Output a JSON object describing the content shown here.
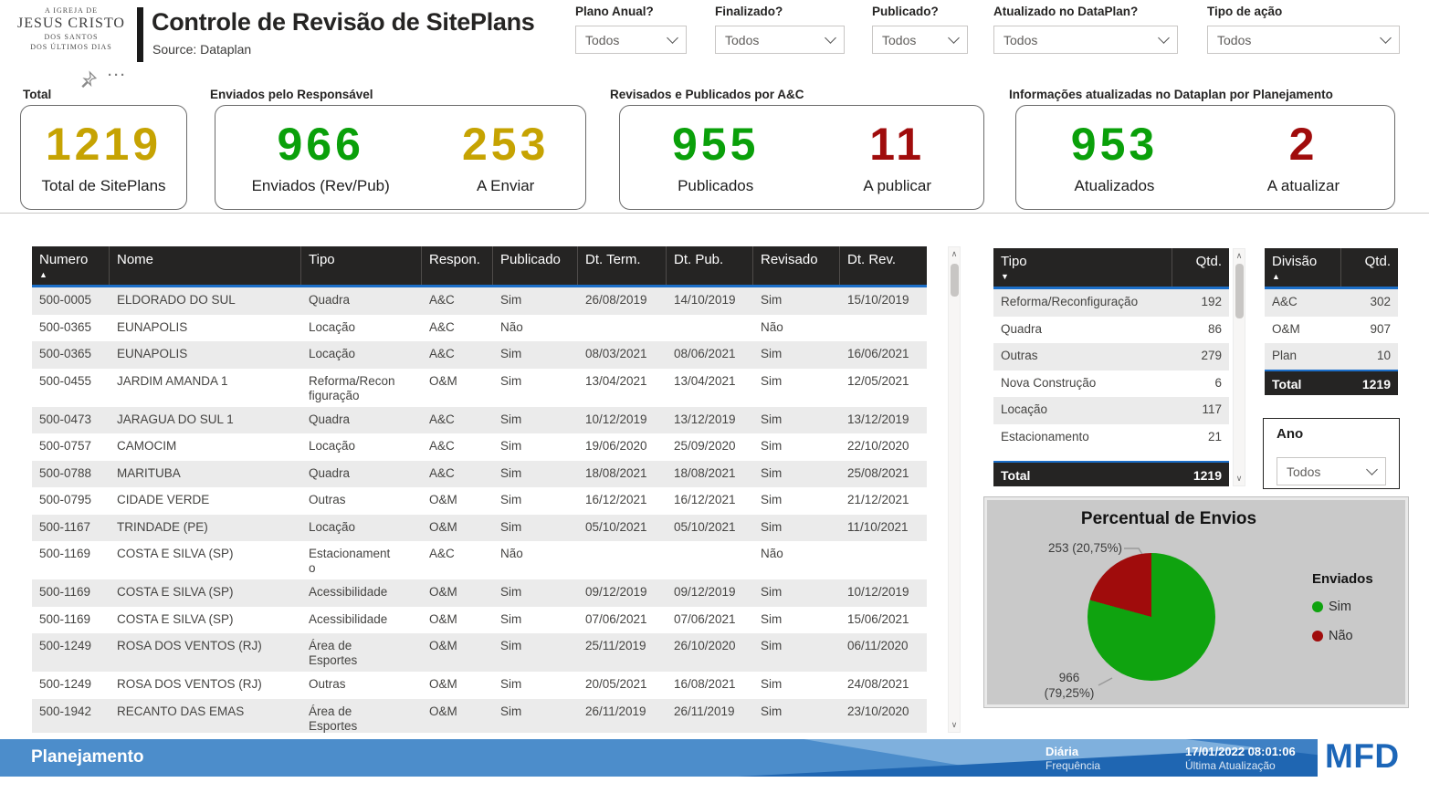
{
  "header": {
    "logo_lines": [
      "A IGREJA DE",
      "JESUS CRISTO",
      "DOS SANTOS",
      "DOS ÚLTIMOS DIAS"
    ],
    "title": "Controle de Revisão de SitePlans",
    "subtitle": "Source: Dataplan"
  },
  "filters": [
    {
      "label": "Plano Anual?",
      "value": "Todos"
    },
    {
      "label": "Finalizado?",
      "value": "Todos"
    },
    {
      "label": "Publicado?",
      "value": "Todos"
    },
    {
      "label": "Atualizado no DataPlan?",
      "value": "Todos"
    },
    {
      "label": "Tipo de ação",
      "value": "Todos"
    }
  ],
  "kpi_cards": [
    {
      "title": "Total",
      "values": [
        {
          "value": "1219",
          "label": "Total de SitePlans",
          "color": "#c6a302"
        }
      ]
    },
    {
      "title": "Enviados pelo Responsável",
      "values": [
        {
          "value": "966",
          "label": "Enviados (Rev/Pub)",
          "color": "#0aa00a"
        },
        {
          "value": "253",
          "label": "A Enviar",
          "color": "#c6a302"
        }
      ]
    },
    {
      "title": "Revisados e Publicados por A&C",
      "values": [
        {
          "value": "955",
          "label": "Publicados",
          "color": "#0aa00a"
        },
        {
          "value": "11",
          "label": "A publicar",
          "color": "#a00c0c"
        }
      ]
    },
    {
      "title": "Informações atualizadas no Dataplan por Planejamento",
      "values": [
        {
          "value": "953",
          "label": "Atualizados",
          "color": "#0aa00a"
        },
        {
          "value": "2",
          "label": "A atualizar",
          "color": "#a00c0c"
        }
      ]
    }
  ],
  "main_table": {
    "columns": [
      {
        "label": "Numero",
        "sort": "asc"
      },
      {
        "label": "Nome"
      },
      {
        "label": "Tipo"
      },
      {
        "label": "Respon."
      },
      {
        "label": "Publicado"
      },
      {
        "label": "Dt. Term."
      },
      {
        "label": "Dt. Pub."
      },
      {
        "label": "Revisado"
      },
      {
        "label": "Dt. Rev."
      }
    ],
    "rows": [
      [
        "500-0005",
        "ELDORADO DO SUL",
        "Quadra",
        "A&C",
        "Sim",
        "26/08/2019",
        "14/10/2019",
        "Sim",
        "15/10/2019"
      ],
      [
        "500-0365",
        "EUNAPOLIS",
        "Locação",
        "A&C",
        "Não",
        "",
        "",
        "Não",
        ""
      ],
      [
        "500-0365",
        "EUNAPOLIS",
        "Locação",
        "A&C",
        "Sim",
        "08/03/2021",
        "08/06/2021",
        "Sim",
        "16/06/2021"
      ],
      [
        "500-0455",
        "JARDIM AMANDA 1",
        "Reforma/Reconfiguração",
        "O&M",
        "Sim",
        "13/04/2021",
        "13/04/2021",
        "Sim",
        "12/05/2021"
      ],
      [
        "500-0473",
        "JARAGUA DO SUL 1",
        "Quadra",
        "A&C",
        "Sim",
        "10/12/2019",
        "13/12/2019",
        "Sim",
        "13/12/2019"
      ],
      [
        "500-0757",
        "CAMOCIM",
        "Locação",
        "A&C",
        "Sim",
        "19/06/2020",
        "25/09/2020",
        "Sim",
        "22/10/2020"
      ],
      [
        "500-0788",
        "MARITUBA",
        "Quadra",
        "A&C",
        "Sim",
        "18/08/2021",
        "18/08/2021",
        "Sim",
        "25/08/2021"
      ],
      [
        "500-0795",
        "CIDADE VERDE",
        "Outras",
        "O&M",
        "Sim",
        "16/12/2021",
        "16/12/2021",
        "Sim",
        "21/12/2021"
      ],
      [
        "500-1167",
        "TRINDADE (PE)",
        "Locação",
        "O&M",
        "Sim",
        "05/10/2021",
        "05/10/2021",
        "Sim",
        "11/10/2021"
      ],
      [
        "500-1169",
        "COSTA E SILVA (SP)",
        "Estacionamento",
        "A&C",
        "Não",
        "",
        "",
        "Não",
        ""
      ],
      [
        "500-1169",
        "COSTA E SILVA (SP)",
        "Acessibilidade",
        "O&M",
        "Sim",
        "09/12/2019",
        "09/12/2019",
        "Sim",
        "10/12/2019"
      ],
      [
        "500-1169",
        "COSTA E SILVA (SP)",
        "Acessibilidade",
        "O&M",
        "Sim",
        "07/06/2021",
        "07/06/2021",
        "Sim",
        "15/06/2021"
      ],
      [
        "500-1249",
        "ROSA DOS VENTOS (RJ)",
        "Área de Esportes",
        "O&M",
        "Sim",
        "25/11/2019",
        "26/10/2020",
        "Sim",
        "06/11/2020"
      ],
      [
        "500-1249",
        "ROSA DOS VENTOS (RJ)",
        "Outras",
        "O&M",
        "Sim",
        "20/05/2021",
        "16/08/2021",
        "Sim",
        "24/08/2021"
      ],
      [
        "500-1942",
        "RECANTO DAS EMAS",
        "Área de Esportes",
        "O&M",
        "Sim",
        "26/11/2019",
        "26/11/2019",
        "Sim",
        "23/10/2020"
      ]
    ]
  },
  "tipo_table": {
    "columns": [
      {
        "label": "Tipo",
        "sort": "desc"
      },
      {
        "label": "Qtd."
      }
    ],
    "rows": [
      [
        "Reforma/Reconfiguração",
        "192"
      ],
      [
        "Quadra",
        "86"
      ],
      [
        "Outras",
        "279"
      ],
      [
        "Nova Construção",
        "6"
      ],
      [
        "Locação",
        "117"
      ],
      [
        "Estacionamento",
        "21"
      ]
    ],
    "total": {
      "label": "Total",
      "value": "1219"
    }
  },
  "divisao_table": {
    "columns": [
      {
        "label": "Divisão",
        "sort": "asc"
      },
      {
        "label": "Qtd."
      }
    ],
    "rows": [
      [
        "A&C",
        "302"
      ],
      [
        "O&M",
        "907"
      ],
      [
        "Plan",
        "10"
      ]
    ],
    "total": {
      "label": "Total",
      "value": "1219"
    }
  },
  "ano_filter": {
    "label": "Ano",
    "value": "Todos"
  },
  "chart_data": {
    "type": "pie",
    "title": "Percentual de Envios",
    "legend_title": "Enviados",
    "legend_position": "right",
    "slices": [
      {
        "label": "Sim",
        "value": 966,
        "pct": 79.25,
        "color": "#0fa30f",
        "callout_lines": [
          "966",
          "(79,25%)"
        ]
      },
      {
        "label": "Não",
        "value": 253,
        "pct": 20.75,
        "color": "#a00c0c",
        "callout_lines": [
          "253 (20,75%)"
        ]
      }
    ]
  },
  "footer": {
    "section_label": "Planejamento",
    "frequency_value": "Diária",
    "frequency_label": "Frequência",
    "updated_value": "17/01/2022 08:01:06",
    "updated_label": "Última Atualização",
    "brand": "MFD"
  },
  "colors": {
    "accent_blue": "#1b6ec8",
    "table_header_bg": "#252423",
    "gold": "#c6a302",
    "green": "#0aa00a",
    "dark_red": "#a00c0c",
    "footer_blue": "#4c8dcb",
    "brand_blue": "#1c66b8"
  }
}
